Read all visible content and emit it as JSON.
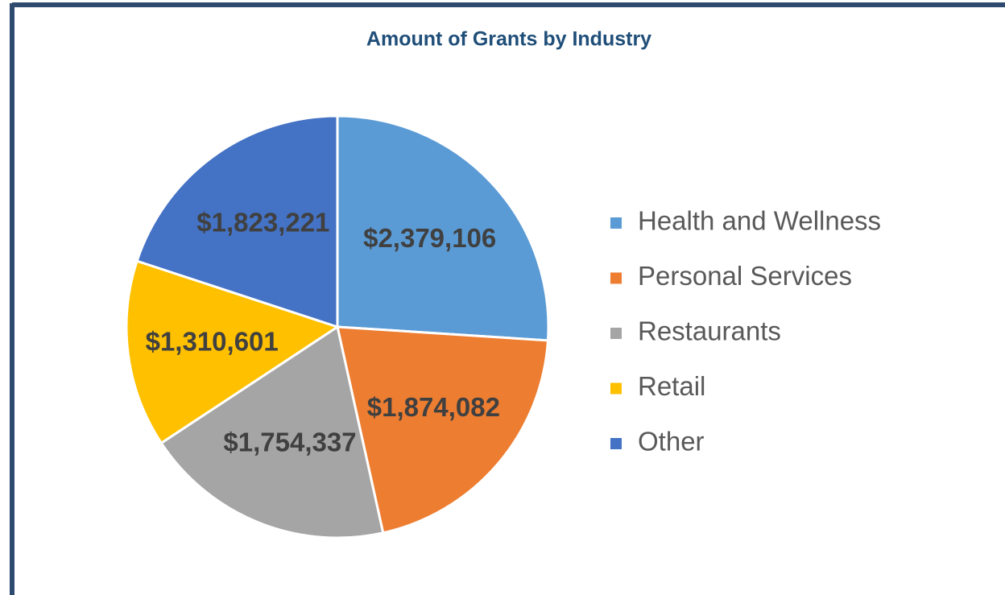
{
  "chart_data": {
    "type": "pie",
    "title": "Amount of Grants by Industry",
    "categories": [
      "Health and Wellness",
      "Personal Services",
      "Restaurants",
      "Retail",
      "Other"
    ],
    "values": [
      2379106,
      1874082,
      1754337,
      1310601,
      1823221
    ],
    "value_labels": [
      "$2,379,106",
      "$1,874,082",
      "$1,754,337",
      "$1,310,601",
      "$1,823,221"
    ],
    "colors": [
      "#5b9bd5",
      "#ed7d31",
      "#a5a5a5",
      "#ffc000",
      "#4472c4"
    ],
    "legend": "right"
  }
}
